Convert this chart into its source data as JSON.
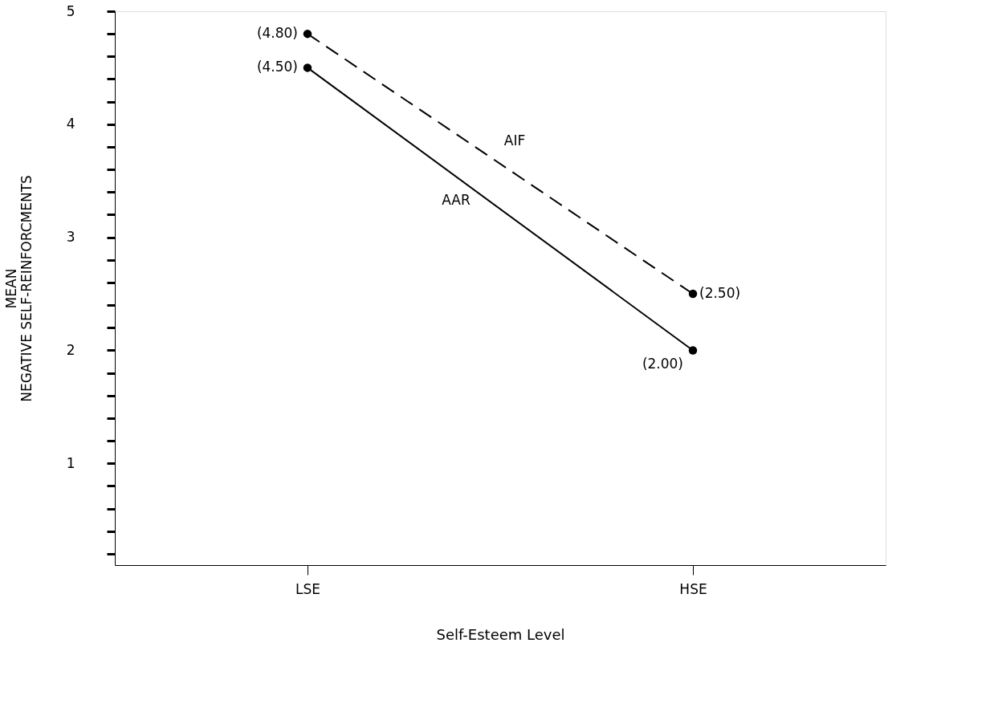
{
  "chart_data": {
    "type": "line",
    "xlabel": "Self-Esteem Level",
    "ylabel": "MEAN\nNEGATIVE SELF-REINFORCMENTS",
    "categories": [
      "LSE",
      "HSE"
    ],
    "series": [
      {
        "name": "AIF",
        "color": "#000000",
        "values": [
          4.8,
          2.5
        ],
        "line_style": "dashed",
        "value_labels": [
          "(4.80)",
          "(2.50)"
        ]
      },
      {
        "name": "AAR",
        "color": "#000000",
        "values": [
          4.5,
          2.0
        ],
        "line_style": "solid",
        "value_labels": [
          "(4.50)",
          "(2.00)"
        ]
      }
    ],
    "ylim": [
      0.1,
      5
    ],
    "yticks": [
      {
        "value": 0.2,
        "label": null
      },
      {
        "value": 0.4,
        "label": null
      },
      {
        "value": 0.6,
        "label": null
      },
      {
        "value": 0.8,
        "label": null
      },
      1,
      {
        "value": 1.2,
        "label": null
      },
      {
        "value": 1.4,
        "label": null
      },
      {
        "value": 1.6,
        "label": null
      },
      {
        "value": 1.8,
        "label": null
      },
      2,
      {
        "value": 2.2,
        "label": null
      },
      {
        "value": 2.4,
        "label": null
      },
      {
        "value": 2.6,
        "label": null
      },
      {
        "value": 2.8,
        "label": null
      },
      3,
      {
        "value": 3.2,
        "label": null
      },
      {
        "value": 3.4,
        "label": null
      },
      {
        "value": 3.6,
        "label": null
      },
      {
        "value": 3.8,
        "label": null
      },
      4,
      {
        "value": 4.2,
        "label": null
      },
      {
        "value": 4.4,
        "label": null
      },
      {
        "value": 4.6,
        "label": null
      },
      {
        "value": 4.8,
        "label": null
      },
      5
    ],
    "marker": "circle",
    "grid": false,
    "legend": false
  }
}
